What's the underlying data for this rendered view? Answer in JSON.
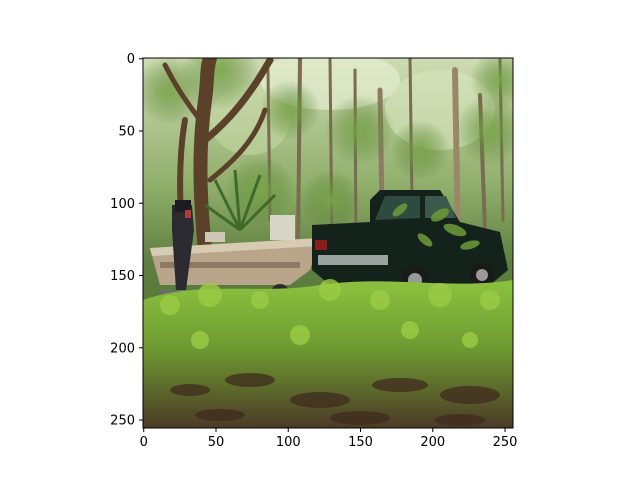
{
  "figure": {
    "image_description_tokens": [
      "forest",
      "boat-on-trailer",
      "pickup-truck",
      "green-undergrowth",
      "leaf-litter"
    ],
    "x_ticks": [
      "0",
      "50",
      "100",
      "150",
      "200",
      "250"
    ],
    "y_ticks": [
      "0",
      "50",
      "100",
      "150",
      "200",
      "250"
    ],
    "x_tick_values": [
      0,
      50,
      100,
      150,
      200,
      250
    ],
    "y_tick_values": [
      0,
      50,
      100,
      150,
      200,
      250
    ],
    "image_extent": [
      0,
      256,
      256,
      0
    ],
    "colors": {
      "sky_light": "#dfe9c8",
      "canopy_green": "#5d8a3a",
      "trunk_brown": "#6b4e32",
      "boat_tan": "#b8a48a",
      "truck_dark": "#12211b",
      "ground_green": "#7fb33a",
      "litter_brown": "#4a3424"
    }
  }
}
